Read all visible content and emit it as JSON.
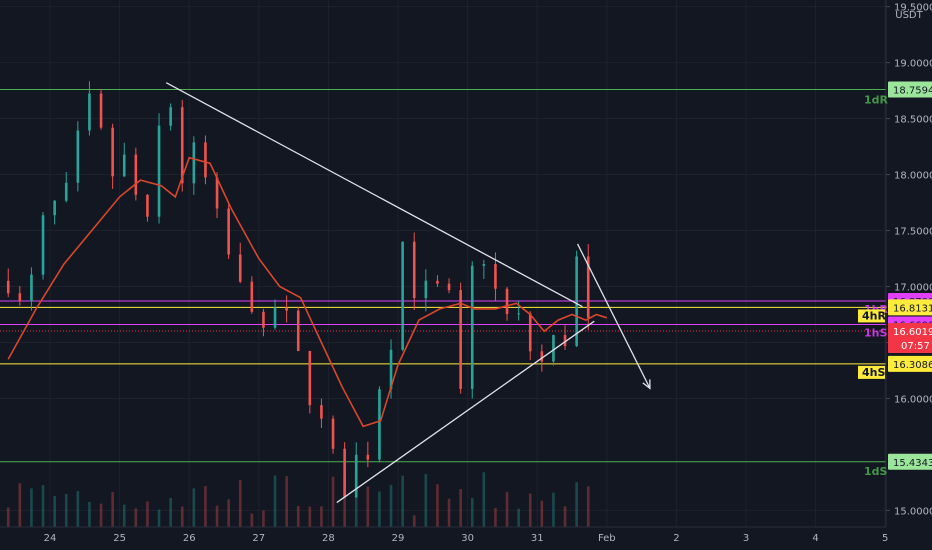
{
  "chart_data": {
    "type": "candlestick",
    "currency": "USDT",
    "ylim": [
      14.95,
      19.55
    ],
    "y_ticks": [
      "15.0000",
      "16.0000",
      "16.5000",
      "17.0000",
      "17.5000",
      "18.0000",
      "18.5000",
      "19.0000",
      "19.5000"
    ],
    "x_day_ticks": [
      {
        "label": "24",
        "day": 0
      },
      {
        "label": "25",
        "day": 1
      },
      {
        "label": "26",
        "day": 2
      },
      {
        "label": "27",
        "day": 3
      },
      {
        "label": "28",
        "day": 4
      },
      {
        "label": "29",
        "day": 5
      },
      {
        "label": "30",
        "day": 6
      },
      {
        "label": "31",
        "day": 7
      },
      {
        "label": "Feb",
        "day": 8
      },
      {
        "label": "2",
        "day": 9
      },
      {
        "label": "3",
        "day": 10
      },
      {
        "label": "4",
        "day": 11
      },
      {
        "label": "5",
        "day": 12
      }
    ],
    "levels": [
      {
        "price": 18.7594,
        "value": "18.7594",
        "label": "1dR",
        "color": "#4caf50",
        "label_style": "plain",
        "box_style": "light"
      },
      {
        "price": 16.87,
        "value": "16.8700",
        "label": "1hR",
        "color": "#e040fb",
        "label_style": "plain",
        "box_style": "magenta"
      },
      {
        "price": 16.8131,
        "value": "16.8131",
        "label": "4hR",
        "color": "#ffeb3b",
        "label_style": "badge",
        "box_style": "yellow"
      },
      {
        "price": 16.66,
        "value": "16.6600",
        "label": "1hS",
        "color": "#e040fb",
        "label_style": "plain",
        "box_style": "magenta"
      },
      {
        "price": 16.3086,
        "value": "16.3086",
        "label": "4hS",
        "color": "#ffeb3b",
        "label_style": "badge",
        "box_style": "yellow"
      },
      {
        "price": 15.4343,
        "value": "15.4343",
        "label": "1dS",
        "color": "#4caf50",
        "label_style": "plain",
        "box_style": "light"
      }
    ],
    "current_price": {
      "price": 16.6019,
      "value": "16.6019",
      "countdown": "07:57",
      "color": "#f23645"
    },
    "trendlines": [
      {
        "from": {
          "day": 1.67,
          "price": 18.82
        },
        "to": {
          "day": 7.65,
          "price": 16.82
        },
        "color": "#e0e3eb"
      },
      {
        "from": {
          "day": 4.12,
          "price": 15.07
        },
        "to": {
          "day": 7.82,
          "price": 16.69
        },
        "color": "#e0e3eb"
      }
    ],
    "arrow": {
      "from": {
        "day": 7.58,
        "price": 17.38
      },
      "to": {
        "day": 8.62,
        "price": 16.09
      },
      "color": "#e0e3eb"
    },
    "candles_ohlc_anchor_closes": [
      [
        -0.55,
        17.05
      ],
      [
        -0.45,
        16.8
      ],
      [
        -0.3,
        16.95
      ],
      [
        -0.15,
        17.4
      ],
      [
        0.0,
        17.9
      ],
      [
        0.15,
        17.5
      ],
      [
        0.3,
        18.1
      ],
      [
        0.45,
        18.4
      ],
      [
        0.6,
        18.7
      ],
      [
        0.75,
        18.3
      ],
      [
        0.9,
        18.0
      ],
      [
        1.05,
        18.15
      ],
      [
        1.2,
        17.95
      ],
      [
        1.35,
        17.3
      ],
      [
        1.5,
        18.0
      ],
      [
        1.6,
        18.6
      ],
      [
        1.7,
        18.8
      ],
      [
        1.85,
        18.0
      ],
      [
        1.97,
        17.9
      ],
      [
        2.1,
        18.3
      ],
      [
        2.25,
        17.9
      ],
      [
        2.4,
        17.6
      ],
      [
        2.55,
        17.3
      ],
      [
        2.7,
        17.0
      ],
      [
        2.85,
        16.9
      ],
      [
        3.0,
        16.8
      ],
      [
        3.12,
        16.3
      ],
      [
        3.25,
        16.9
      ],
      [
        3.35,
        16.8
      ],
      [
        3.5,
        16.5
      ],
      [
        3.65,
        16.2
      ],
      [
        3.8,
        15.9
      ],
      [
        3.95,
        15.7
      ],
      [
        4.1,
        15.4
      ],
      [
        4.2,
        15.1
      ],
      [
        4.35,
        15.55
      ],
      [
        4.5,
        15.3
      ],
      [
        4.65,
        15.8
      ],
      [
        4.8,
        16.4
      ],
      [
        4.95,
        16.6
      ],
      [
        5.05,
        17.45
      ],
      [
        5.2,
        17.0
      ],
      [
        5.35,
        16.9
      ],
      [
        5.5,
        17.1
      ],
      [
        5.65,
        16.8
      ],
      [
        5.75,
        16.9
      ],
      [
        5.9,
        16.0
      ],
      [
        6.0,
        16.8
      ],
      [
        6.1,
        17.3
      ],
      [
        6.2,
        17.5
      ],
      [
        6.3,
        16.8
      ],
      [
        6.4,
        16.95
      ],
      [
        6.55,
        16.7
      ],
      [
        6.7,
        16.9
      ],
      [
        6.8,
        16.3
      ],
      [
        6.95,
        16.5
      ],
      [
        7.05,
        16.3
      ],
      [
        7.15,
        16.4
      ],
      [
        7.3,
        16.6
      ],
      [
        7.45,
        16.5
      ],
      [
        7.55,
        17.3
      ],
      [
        7.65,
        16.9
      ],
      [
        7.75,
        16.6
      ]
    ],
    "moving_average": [
      [
        -0.6,
        16.35
      ],
      [
        -0.2,
        16.8
      ],
      [
        0.2,
        17.2
      ],
      [
        0.6,
        17.5
      ],
      [
        1.0,
        17.8
      ],
      [
        1.3,
        17.95
      ],
      [
        1.6,
        17.9
      ],
      [
        1.8,
        17.8
      ],
      [
        2.0,
        18.15
      ],
      [
        2.3,
        18.1
      ],
      [
        2.6,
        17.7
      ],
      [
        3.0,
        17.25
      ],
      [
        3.3,
        17.0
      ],
      [
        3.6,
        16.9
      ],
      [
        3.9,
        16.5
      ],
      [
        4.2,
        16.1
      ],
      [
        4.5,
        15.75
      ],
      [
        4.75,
        15.8
      ],
      [
        5.0,
        16.3
      ],
      [
        5.3,
        16.7
      ],
      [
        5.6,
        16.8
      ],
      [
        5.9,
        16.85
      ],
      [
        6.1,
        16.8
      ],
      [
        6.4,
        16.8
      ],
      [
        6.7,
        16.85
      ],
      [
        6.9,
        16.75
      ],
      [
        7.1,
        16.6
      ],
      [
        7.3,
        16.7
      ],
      [
        7.5,
        16.75
      ],
      [
        7.7,
        16.7
      ],
      [
        7.85,
        16.75
      ],
      [
        8.0,
        16.72
      ]
    ]
  }
}
